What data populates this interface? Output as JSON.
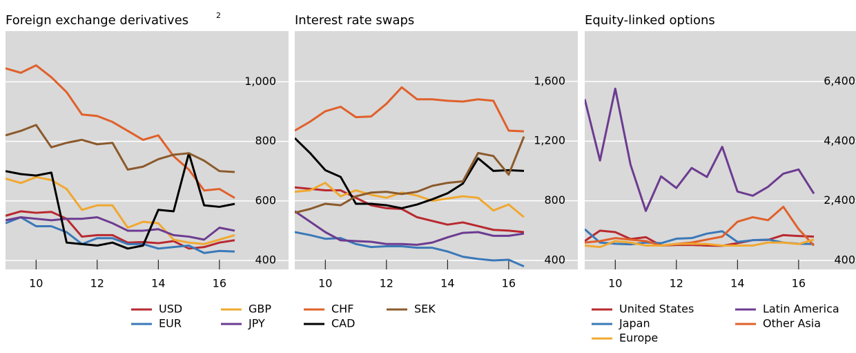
{
  "chart_data": [
    {
      "type": "line",
      "title": "Foreign exchange derivatives",
      "title_superscript": "2",
      "x": [
        9,
        9.5,
        10,
        10.5,
        11,
        11.5,
        12,
        12.5,
        13,
        13.5,
        14,
        14.5,
        15,
        15.5,
        16,
        16.5
      ],
      "xlim": [
        9,
        16.5
      ],
      "xticks": [
        10,
        12,
        14,
        16
      ],
      "ylim": [
        370,
        1170
      ],
      "yticks": [
        400,
        600,
        800,
        {
          "value": 1000,
          "label": "1,000"
        }
      ],
      "grid": true,
      "series": [
        {
          "name": "USD",
          "color": "#b8292f",
          "values": [
            550,
            565,
            560,
            563,
            540,
            480,
            485,
            485,
            460,
            462,
            458,
            465,
            440,
            445,
            460,
            468
          ]
        },
        {
          "name": "EUR",
          "color": "#3a78b8",
          "values": [
            525,
            545,
            515,
            515,
            495,
            455,
            475,
            475,
            455,
            455,
            440,
            445,
            450,
            425,
            432,
            430
          ]
        },
        {
          "name": "GBP",
          "color": "#f0a830",
          "values": [
            675,
            660,
            680,
            670,
            640,
            570,
            585,
            585,
            510,
            530,
            525,
            470,
            460,
            455,
            470,
            485
          ]
        },
        {
          "name": "JPY",
          "color": "#6c3b90",
          "values": [
            535,
            545,
            540,
            535,
            540,
            540,
            545,
            525,
            500,
            500,
            505,
            485,
            480,
            470,
            510,
            500
          ]
        },
        {
          "name": "CHF",
          "color": "#e0602a",
          "values": [
            1045,
            1030,
            1055,
            1015,
            965,
            890,
            885,
            865,
            835,
            805,
            820,
            750,
            705,
            635,
            640,
            610
          ]
        },
        {
          "name": "CAD",
          "color": "#000000",
          "values": [
            700,
            690,
            685,
            695,
            460,
            455,
            450,
            460,
            440,
            450,
            570,
            565,
            760,
            585,
            580,
            590
          ]
        },
        {
          "name": "SEK",
          "color": "#8b5a2b",
          "values": [
            820,
            835,
            855,
            780,
            795,
            805,
            790,
            795,
            705,
            715,
            740,
            755,
            760,
            735,
            700,
            697
          ]
        }
      ]
    },
    {
      "type": "line",
      "title": "Interest rate swaps",
      "x": [
        9,
        9.5,
        10,
        10.5,
        11,
        11.5,
        12,
        12.5,
        13,
        13.5,
        14,
        14.5,
        15,
        15.5,
        16,
        16.5
      ],
      "xlim": [
        9,
        16.5
      ],
      "xticks": [
        10,
        12,
        14,
        16
      ],
      "ylim": [
        340,
        1937
      ],
      "yticks": [
        400,
        800,
        {
          "value": 1200,
          "label": "1,200"
        },
        {
          "value": 1600,
          "label": "1,600"
        }
      ],
      "grid": true,
      "series": [
        {
          "name": "USD",
          "color": "#b8292f",
          "values": [
            890,
            880,
            870,
            870,
            820,
            770,
            750,
            745,
            690,
            665,
            640,
            655,
            630,
            605,
            600,
            590
          ]
        },
        {
          "name": "EUR",
          "color": "#3a78b8",
          "values": [
            590,
            570,
            545,
            550,
            510,
            490,
            495,
            495,
            485,
            485,
            460,
            425,
            410,
            400,
            405,
            360
          ]
        },
        {
          "name": "GBP",
          "color": "#f0a830",
          "values": [
            860,
            870,
            920,
            830,
            870,
            840,
            820,
            855,
            835,
            800,
            815,
            830,
            820,
            735,
            775,
            690
          ]
        },
        {
          "name": "JPY",
          "color": "#6c3b90",
          "values": [
            730,
            660,
            590,
            535,
            530,
            525,
            510,
            510,
            505,
            520,
            555,
            585,
            590,
            565,
            565,
            580
          ]
        },
        {
          "name": "CHF",
          "color": "#e0602a",
          "values": [
            1270,
            1330,
            1400,
            1430,
            1360,
            1365,
            1450,
            1560,
            1480,
            1480,
            1470,
            1465,
            1480,
            1470,
            1270,
            1265
          ]
        },
        {
          "name": "CAD",
          "color": "#000000",
          "values": [
            1220,
            1120,
            1005,
            960,
            780,
            780,
            770,
            750,
            775,
            810,
            850,
            915,
            1085,
            1000,
            1005,
            1000
          ]
        },
        {
          "name": "SEK",
          "color": "#8b5a2b",
          "values": [
            720,
            745,
            780,
            770,
            830,
            855,
            860,
            845,
            860,
            900,
            920,
            930,
            1120,
            1100,
            975,
            1230
          ]
        }
      ]
    },
    {
      "type": "line",
      "title": "Equity-linked options",
      "x": [
        9,
        9.5,
        10,
        10.5,
        11,
        11.5,
        12,
        12.5,
        13,
        13.5,
        14,
        14.5,
        15,
        15.5,
        16,
        16.5
      ],
      "xlim": [
        9,
        16.5
      ],
      "xticks": [
        10,
        12,
        14,
        16
      ],
      "ylim": [
        100,
        8090
      ],
      "yticks": [
        400,
        {
          "value": 2400,
          "label": "2,400"
        },
        {
          "value": 4400,
          "label": "4,400"
        },
        {
          "value": 6400,
          "label": "6,400"
        }
      ],
      "grid": true,
      "series": [
        {
          "name": "United States",
          "color": "#b8292f",
          "values": [
            1050,
            1400,
            1350,
            1120,
            1180,
            900,
            920,
            920,
            900,
            890,
            980,
            1080,
            1090,
            1250,
            1220,
            1200
          ]
        },
        {
          "name": "Latin America",
          "color": "#6c3b90",
          "values": [
            5810,
            3750,
            6160,
            3610,
            2060,
            3220,
            2830,
            3500,
            3200,
            4210,
            2710,
            2570,
            2870,
            3310,
            3450,
            2640
          ]
        },
        {
          "name": "Japan",
          "color": "#3a78b8",
          "values": [
            1450,
            1000,
            960,
            940,
            1000,
            980,
            1130,
            1150,
            1300,
            1380,
            1020,
            1080,
            1100,
            1000,
            960,
            950
          ]
        },
        {
          "name": "Other Asia",
          "color": "#e0602a",
          "values": [
            1000,
            1050,
            1150,
            1100,
            1050,
            900,
            950,
            1000,
            1100,
            1200,
            1700,
            1850,
            1750,
            2200,
            1450,
            900
          ]
        },
        {
          "name": "Europe",
          "color": "#f0a830",
          "values": [
            900,
            850,
            1050,
            1000,
            900,
            900,
            950,
            960,
            950,
            900,
            900,
            900,
            1000,
            1000,
            950,
            1100
          ]
        }
      ]
    }
  ]
}
